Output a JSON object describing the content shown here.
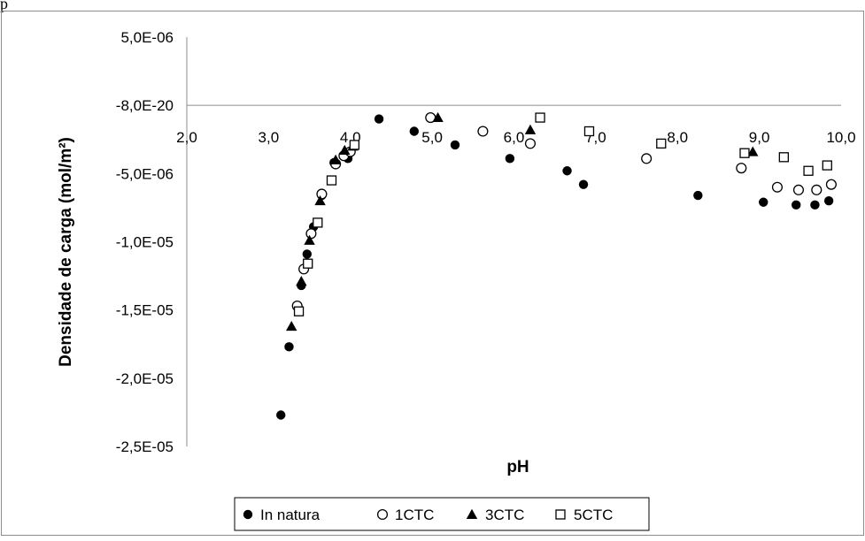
{
  "page": {
    "top_letter": "p"
  },
  "chart_data": {
    "type": "scatter",
    "title": "",
    "xlabel": "pH",
    "ylabel": "Densidade de carga (mol/m²)",
    "xlim": [
      2.0,
      10.0
    ],
    "ylim": [
      -2.5e-05,
      5e-06
    ],
    "x_ticks": [
      2.0,
      3.0,
      4.0,
      5.0,
      6.0,
      7.0,
      8.0,
      9.0,
      10.0
    ],
    "x_tick_labels": [
      "2,0",
      "3,0",
      "4,0",
      "5,0",
      "6,0",
      "7,0",
      "8,0",
      "9,0",
      "10,0"
    ],
    "y_ticks": [
      5e-06,
      0,
      -5e-06,
      -1e-05,
      -1.5e-05,
      -2e-05,
      -2.5e-05
    ],
    "y_tick_labels": [
      "5,0E-06",
      "-8,0E-20",
      "-5,0E-06",
      "-1,0E-05",
      "-1,5E-05",
      "-2,0E-05",
      "-2,5E-05"
    ],
    "grid": false,
    "legend_position": "bottom",
    "series": [
      {
        "name": "In natura",
        "marker": "filled-circle",
        "color": "#000000",
        "points": [
          [
            3.15,
            -2.27e-05
          ],
          [
            3.25,
            -1.77e-05
          ],
          [
            3.4,
            -1.32e-05
          ],
          [
            3.47,
            -1.09e-05
          ],
          [
            3.55,
            -8.9e-06
          ],
          [
            3.65,
            -6.6e-06
          ],
          [
            3.8,
            -4.2e-06
          ],
          [
            3.97,
            -3.9e-06
          ],
          [
            4.35,
            -1e-06
          ],
          [
            4.78,
            -1.9e-06
          ],
          [
            5.28,
            -2.9e-06
          ],
          [
            5.95,
            -3.9e-06
          ],
          [
            6.65,
            -4.8e-06
          ],
          [
            6.85,
            -5.8e-06
          ],
          [
            8.25,
            -6.6e-06
          ],
          [
            9.05,
            -7.1e-06
          ],
          [
            9.45,
            -7.3e-06
          ],
          [
            9.68,
            -7.3e-06
          ],
          [
            9.85,
            -7e-06
          ]
        ]
      },
      {
        "name": "1CTC",
        "marker": "open-circle",
        "color": "#000000",
        "points": [
          [
            3.35,
            -1.47e-05
          ],
          [
            3.43,
            -1.2e-05
          ],
          [
            3.52,
            -9.4e-06
          ],
          [
            3.65,
            -6.5e-06
          ],
          [
            3.82,
            -4.3e-06
          ],
          [
            3.92,
            -3.7e-06
          ],
          [
            4.0,
            -3.4e-06
          ],
          [
            4.98,
            -9e-07
          ],
          [
            5.62,
            -1.9e-06
          ],
          [
            6.2,
            -2.8e-06
          ],
          [
            7.62,
            -3.9e-06
          ],
          [
            8.78,
            -4.6e-06
          ],
          [
            9.22,
            -6e-06
          ],
          [
            9.48,
            -6.2e-06
          ],
          [
            9.7,
            -6.2e-06
          ],
          [
            9.88,
            -5.8e-06
          ]
        ]
      },
      {
        "name": "3CTC",
        "marker": "filled-triangle",
        "color": "#000000",
        "points": [
          [
            3.28,
            -1.62e-05
          ],
          [
            3.4,
            -1.29e-05
          ],
          [
            3.5,
            -9.9e-06
          ],
          [
            3.63,
            -7e-06
          ],
          [
            3.82,
            -4e-06
          ],
          [
            3.93,
            -3.3e-06
          ],
          [
            4.03,
            -3e-06
          ],
          [
            5.07,
            -9e-07
          ],
          [
            6.2,
            -1.8e-06
          ],
          [
            8.92,
            -3.4e-06
          ]
        ]
      },
      {
        "name": "5CTC",
        "marker": "open-square",
        "color": "#000000",
        "points": [
          [
            3.37,
            -1.51e-05
          ],
          [
            3.48,
            -1.16e-05
          ],
          [
            3.6,
            -8.6e-06
          ],
          [
            3.77,
            -5.5e-06
          ],
          [
            4.05,
            -2.9e-06
          ],
          [
            6.32,
            -9e-07
          ],
          [
            6.92,
            -1.9e-06
          ],
          [
            7.8,
            -2.8e-06
          ],
          [
            8.82,
            -3.5e-06
          ],
          [
            9.3,
            -3.8e-06
          ],
          [
            9.6,
            -4.8e-06
          ],
          [
            9.83,
            -4.4e-06
          ]
        ]
      }
    ]
  }
}
